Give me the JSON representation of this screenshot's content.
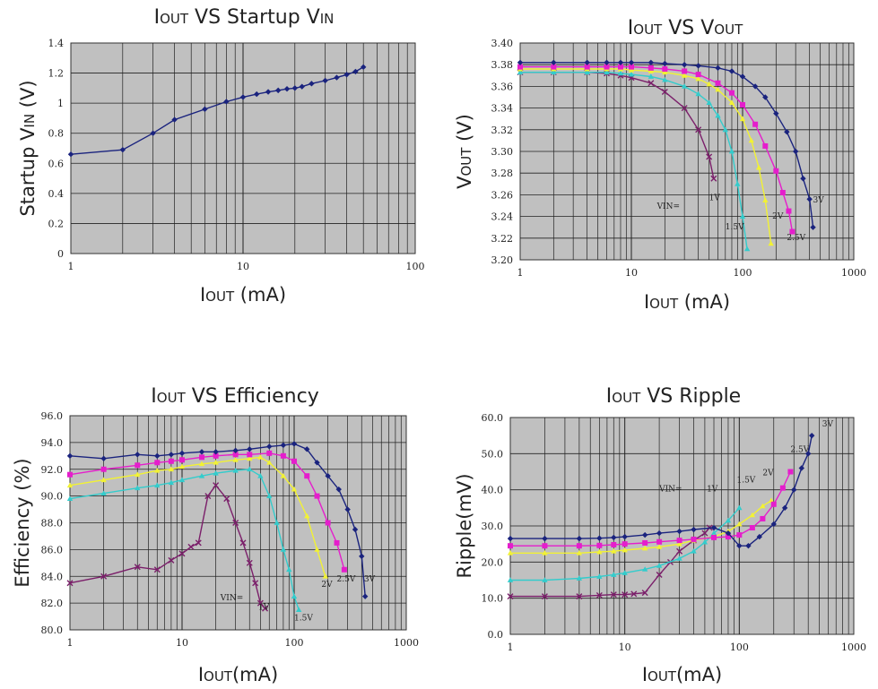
{
  "chart_data": [
    {
      "id": "p1",
      "type": "line",
      "title": "IOUT VS Startup VIN",
      "title_parts": [
        [
          "I",
          "big"
        ],
        [
          "OUT",
          "sc"
        ],
        [
          " VS Startup V",
          "big"
        ],
        [
          "IN",
          "sc"
        ]
      ],
      "xlabel": "IOUT (mA)",
      "xlabel_parts": [
        [
          "I",
          "big"
        ],
        [
          "OUT",
          "sc"
        ],
        [
          " (mA)",
          "big"
        ]
      ],
      "ylabel": "Startup VIN (V)",
      "ylabel_parts": [
        [
          "Startup V",
          "big"
        ],
        [
          "IN",
          "sc"
        ],
        [
          " (V)",
          "big"
        ]
      ],
      "xscale": "log",
      "xlim": [
        1,
        100
      ],
      "ylim": [
        0,
        1.4
      ],
      "x_ticks": [
        "1",
        "10",
        "100"
      ],
      "y_ticks": [
        "0",
        "0.2",
        "0.4",
        "0.6",
        "0.8",
        "1",
        "1.2",
        "1.4"
      ],
      "y_tick_values": [
        0,
        0.2,
        0.4,
        0.6,
        0.8,
        1,
        1.2,
        1.4
      ],
      "grid": true,
      "background": "#c0c0c0",
      "series": [
        {
          "color": "#1a237e",
          "marker": "diamond",
          "x": [
            1,
            2,
            3,
            4,
            6,
            8,
            10,
            12,
            14,
            16,
            18,
            20,
            22,
            25,
            30,
            35,
            40,
            45,
            50
          ],
          "y": [
            0.66,
            0.69,
            0.8,
            0.89,
            0.96,
            1.01,
            1.04,
            1.06,
            1.075,
            1.085,
            1.095,
            1.1,
            1.11,
            1.13,
            1.15,
            1.17,
            1.19,
            1.21,
            1.24
          ]
        }
      ],
      "annotations": []
    },
    {
      "id": "p2",
      "type": "line",
      "title": "IOUT VS VOUT",
      "title_parts": [
        [
          "I",
          "big"
        ],
        [
          "OUT",
          "sc"
        ],
        [
          " VS V",
          "big"
        ],
        [
          "OUT",
          "sc"
        ]
      ],
      "xlabel": "IOUT (mA)",
      "xlabel_parts": [
        [
          "I",
          "big"
        ],
        [
          "OUT",
          "sc"
        ],
        [
          " (mA)",
          "big"
        ]
      ],
      "ylabel": "VOUT (V)",
      "ylabel_parts": [
        [
          "V",
          "big"
        ],
        [
          "OUT",
          "sc"
        ],
        [
          " (V)",
          "big"
        ]
      ],
      "xscale": "log",
      "xlim": [
        1,
        1000
      ],
      "ylim": [
        3.2,
        3.4
      ],
      "x_ticks": [
        "1",
        "10",
        "100",
        "1000"
      ],
      "y_ticks": [
        "3.20",
        "3.22",
        "3.24",
        "3.26",
        "3.28",
        "3.30",
        "3.32",
        "3.34",
        "3.36",
        "3.38",
        "3.40"
      ],
      "y_tick_values": [
        3.2,
        3.22,
        3.24,
        3.26,
        3.28,
        3.3,
        3.32,
        3.34,
        3.36,
        3.38,
        3.4
      ],
      "grid": true,
      "background": "#c0c0c0",
      "series": [
        {
          "name": "1V",
          "color": "#7b1f6a",
          "marker": "x",
          "x": [
            1,
            2,
            4,
            6,
            8,
            10,
            15,
            20,
            30,
            40,
            50,
            55
          ],
          "y": [
            3.373,
            3.373,
            3.373,
            3.372,
            3.37,
            3.368,
            3.363,
            3.355,
            3.34,
            3.32,
            3.295,
            3.275
          ]
        },
        {
          "name": "1.5V",
          "color": "#33cccc",
          "marker": "triangle",
          "x": [
            1,
            2,
            4,
            6,
            8,
            10,
            15,
            20,
            30,
            40,
            50,
            60,
            70,
            80,
            90,
            100,
            110
          ],
          "y": [
            3.373,
            3.373,
            3.373,
            3.373,
            3.372,
            3.371,
            3.369,
            3.366,
            3.36,
            3.353,
            3.345,
            3.333,
            3.32,
            3.3,
            3.27,
            3.24,
            3.21
          ]
        },
        {
          "name": "2V",
          "color": "#f2f233",
          "marker": "triangle",
          "x": [
            1,
            2,
            4,
            6,
            8,
            10,
            15,
            20,
            30,
            40,
            50,
            60,
            80,
            100,
            120,
            140,
            160,
            180
          ],
          "y": [
            3.376,
            3.376,
            3.376,
            3.376,
            3.376,
            3.375,
            3.374,
            3.373,
            3.37,
            3.367,
            3.362,
            3.357,
            3.345,
            3.33,
            3.31,
            3.285,
            3.255,
            3.215
          ]
        },
        {
          "name": "2.5V",
          "color": "#e51ecc",
          "marker": "square",
          "x": [
            1,
            2,
            4,
            6,
            8,
            10,
            15,
            20,
            30,
            40,
            60,
            80,
            100,
            130,
            160,
            200,
            230,
            260,
            280
          ],
          "y": [
            3.378,
            3.378,
            3.378,
            3.378,
            3.378,
            3.378,
            3.377,
            3.376,
            3.374,
            3.371,
            3.363,
            3.354,
            3.343,
            3.325,
            3.305,
            3.282,
            3.262,
            3.245,
            3.226
          ]
        },
        {
          "name": "3V",
          "color": "#1a237e",
          "marker": "diamond",
          "x": [
            1,
            2,
            4,
            6,
            8,
            10,
            15,
            20,
            30,
            40,
            60,
            80,
            100,
            130,
            160,
            200,
            250,
            300,
            350,
            400,
            430
          ],
          "y": [
            3.382,
            3.382,
            3.382,
            3.382,
            3.382,
            3.382,
            3.382,
            3.381,
            3.38,
            3.379,
            3.377,
            3.374,
            3.369,
            3.36,
            3.35,
            3.335,
            3.318,
            3.3,
            3.275,
            3.256,
            3.23
          ]
        }
      ],
      "annotations": [
        {
          "text": "VIN=",
          "x": 17,
          "y": 3.247
        },
        {
          "text": "1V",
          "x": 50,
          "y": 3.255
        },
        {
          "text": "1.5V",
          "x": 70,
          "y": 3.228
        },
        {
          "text": "2V",
          "x": 185,
          "y": 3.238
        },
        {
          "text": "2.5V",
          "x": 250,
          "y": 3.218
        },
        {
          "text": "3V",
          "x": 430,
          "y": 3.253
        }
      ]
    },
    {
      "id": "p3",
      "type": "line",
      "title": "IOUT VS Efficiency",
      "title_parts": [
        [
          "I",
          "big"
        ],
        [
          "OUT",
          "sc"
        ],
        [
          " VS Efficiency",
          "big"
        ]
      ],
      "xlabel": "IOUT(mA)",
      "xlabel_parts": [
        [
          "I",
          "big"
        ],
        [
          "OUT",
          "sc"
        ],
        [
          "(mA)",
          "big"
        ]
      ],
      "ylabel": "Efficiency (%)",
      "ylabel_parts": [
        [
          "Efficiency (%)",
          "big"
        ]
      ],
      "xscale": "log",
      "xlim": [
        1,
        1000
      ],
      "ylim": [
        80,
        96
      ],
      "x_ticks": [
        "1",
        "10",
        "100",
        "1000"
      ],
      "y_ticks": [
        "80.0",
        "82.0",
        "84.0",
        "86.0",
        "88.0",
        "90.0",
        "92.0",
        "94.0",
        "96.0"
      ],
      "y_tick_values": [
        80,
        82,
        84,
        86,
        88,
        90,
        92,
        94,
        96
      ],
      "grid": true,
      "background": "#c0c0c0",
      "series": [
        {
          "name": "1V",
          "color": "#7b1f6a",
          "marker": "x",
          "x": [
            1,
            2,
            4,
            6,
            8,
            10,
            12,
            14,
            17,
            20,
            25,
            30,
            35,
            40,
            45,
            50,
            55
          ],
          "y": [
            83.5,
            84.0,
            84.7,
            84.5,
            85.2,
            85.7,
            86.2,
            86.5,
            90.0,
            90.8,
            89.8,
            88.0,
            86.5,
            85.0,
            83.5,
            82.0,
            81.6
          ]
        },
        {
          "name": "1.5V",
          "color": "#33cccc",
          "marker": "triangle",
          "x": [
            1,
            2,
            4,
            6,
            8,
            10,
            15,
            20,
            30,
            40,
            50,
            60,
            70,
            80,
            90,
            100,
            110
          ],
          "y": [
            89.8,
            90.2,
            90.6,
            90.8,
            91.0,
            91.2,
            91.5,
            91.7,
            91.9,
            92.0,
            91.5,
            90.0,
            88.0,
            86.0,
            84.5,
            82.5,
            81.5
          ]
        },
        {
          "name": "2V",
          "color": "#f2f233",
          "marker": "triangle",
          "x": [
            1,
            2,
            4,
            6,
            8,
            10,
            15,
            20,
            30,
            40,
            50,
            60,
            80,
            100,
            130,
            160,
            190
          ],
          "y": [
            90.8,
            91.2,
            91.6,
            91.9,
            92.0,
            92.2,
            92.4,
            92.5,
            92.7,
            92.8,
            92.9,
            92.5,
            91.5,
            90.5,
            88.5,
            86.0,
            84.0
          ]
        },
        {
          "name": "2.5V",
          "color": "#e51ecc",
          "marker": "square",
          "x": [
            1,
            2,
            4,
            6,
            8,
            10,
            15,
            20,
            30,
            40,
            60,
            80,
            100,
            130,
            160,
            200,
            240,
            280
          ],
          "y": [
            91.6,
            92.0,
            92.3,
            92.5,
            92.6,
            92.7,
            92.9,
            93.0,
            93.1,
            93.1,
            93.2,
            93.0,
            92.6,
            91.5,
            90.0,
            88.0,
            86.5,
            84.5
          ]
        },
        {
          "name": "3V",
          "color": "#1a237e",
          "marker": "diamond",
          "x": [
            1,
            2,
            4,
            6,
            8,
            10,
            15,
            20,
            30,
            40,
            60,
            80,
            100,
            130,
            160,
            200,
            250,
            300,
            350,
            400,
            430
          ],
          "y": [
            93.0,
            92.8,
            93.1,
            93.0,
            93.1,
            93.2,
            93.3,
            93.3,
            93.4,
            93.5,
            93.7,
            93.8,
            93.9,
            93.5,
            92.5,
            91.5,
            90.5,
            89.0,
            87.5,
            85.5,
            82.5
          ]
        }
      ],
      "annotations": [
        {
          "text": "VIN=",
          "x": 22,
          "y": 82.2
        },
        {
          "text": "1V",
          "x": 48,
          "y": 81.5
        },
        {
          "text": "1.5V",
          "x": 100,
          "y": 80.7
        },
        {
          "text": "2V",
          "x": 175,
          "y": 83.2
        },
        {
          "text": "2.5V",
          "x": 240,
          "y": 83.6
        },
        {
          "text": "3V",
          "x": 420,
          "y": 83.6
        }
      ]
    },
    {
      "id": "p4",
      "type": "line",
      "title": "IOUT VS Ripple",
      "title_parts": [
        [
          "I",
          "big"
        ],
        [
          "OUT",
          "sc"
        ],
        [
          " VS Ripple",
          "big"
        ]
      ],
      "xlabel": "IOUT(mA)",
      "xlabel_parts": [
        [
          "I",
          "big"
        ],
        [
          "OUT",
          "sc"
        ],
        [
          "(mA)",
          "big"
        ]
      ],
      "ylabel": "Ripple(mV)",
      "ylabel_parts": [
        [
          "Ripple(mV)",
          "big"
        ]
      ],
      "xscale": "log",
      "xlim": [
        1,
        1000
      ],
      "ylim": [
        0,
        60
      ],
      "x_ticks": [
        "1",
        "10",
        "100",
        "1000"
      ],
      "y_ticks": [
        "0.0",
        "10.0",
        "20.0",
        "30.0",
        "40.0",
        "50.0",
        "60.0"
      ],
      "y_tick_values": [
        0,
        10,
        20,
        30,
        40,
        50,
        60
      ],
      "grid": true,
      "background": "#c0c0c0",
      "series": [
        {
          "name": "1V",
          "color": "#7b1f6a",
          "marker": "x",
          "x": [
            1,
            2,
            4,
            6,
            8,
            10,
            12,
            15,
            20,
            25,
            30,
            40,
            50,
            55
          ],
          "y": [
            10.5,
            10.5,
            10.5,
            10.8,
            11.0,
            11.0,
            11.2,
            11.5,
            16.5,
            20.0,
            23.0,
            26.0,
            28.0,
            29.5
          ]
        },
        {
          "name": "1.5V",
          "color": "#33cccc",
          "marker": "triangle",
          "x": [
            1,
            2,
            4,
            6,
            8,
            10,
            15,
            20,
            30,
            40,
            50,
            60,
            80,
            100
          ],
          "y": [
            15.0,
            15.0,
            15.5,
            16.0,
            16.5,
            17.0,
            18.0,
            19.0,
            21.0,
            23.0,
            25.5,
            28.0,
            31.5,
            35.0
          ]
        },
        {
          "name": "2V",
          "color": "#f2f233",
          "marker": "triangle",
          "x": [
            1,
            2,
            4,
            6,
            8,
            10,
            15,
            20,
            30,
            40,
            60,
            80,
            100,
            130,
            160,
            190
          ],
          "y": [
            22.5,
            22.5,
            22.5,
            22.8,
            23.0,
            23.3,
            23.8,
            24.2,
            25.0,
            26.0,
            27.0,
            28.5,
            30.5,
            33.0,
            35.5,
            37.0
          ]
        },
        {
          "name": "2.5V",
          "color": "#e51ecc",
          "marker": "square",
          "x": [
            1,
            2,
            4,
            6,
            8,
            10,
            15,
            20,
            30,
            40,
            60,
            80,
            100,
            130,
            160,
            200,
            240,
            280
          ],
          "y": [
            24.5,
            24.5,
            24.5,
            24.6,
            24.8,
            25.0,
            25.3,
            25.6,
            26.0,
            26.3,
            26.8,
            27.0,
            27.5,
            29.5,
            32.0,
            36.0,
            40.5,
            45.0
          ]
        },
        {
          "name": "3V",
          "color": "#1a237e",
          "marker": "diamond",
          "x": [
            1,
            2,
            4,
            6,
            8,
            10,
            15,
            20,
            30,
            40,
            60,
            80,
            100,
            120,
            150,
            200,
            250,
            300,
            350,
            400,
            430
          ],
          "y": [
            26.5,
            26.5,
            26.5,
            26.6,
            26.8,
            27.0,
            27.5,
            28.0,
            28.5,
            29.0,
            29.5,
            28.0,
            24.5,
            24.5,
            27.0,
            30.5,
            35.0,
            40.0,
            46.0,
            50.0,
            55.0
          ]
        }
      ],
      "annotations": [
        {
          "text": "VIN=",
          "x": 20,
          "y": 39.5
        },
        {
          "text": "1V",
          "x": 52,
          "y": 39.5
        },
        {
          "text": "1.5V",
          "x": 95,
          "y": 42.0
        },
        {
          "text": "2V",
          "x": 160,
          "y": 44.0
        },
        {
          "text": "2.5V",
          "x": 280,
          "y": 50.5
        },
        {
          "text": "3V",
          "x": 530,
          "y": 57.5
        }
      ]
    }
  ]
}
